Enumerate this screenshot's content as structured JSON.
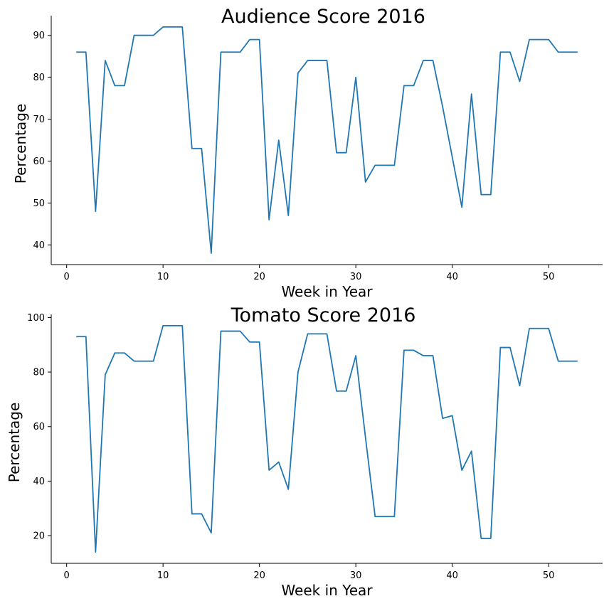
{
  "chart_data": [
    {
      "type": "line",
      "title": "Audience Score 2016",
      "xlabel": "Week in Year",
      "ylabel": "Percentage",
      "xlim": [
        -1.6,
        55.6
      ],
      "ylim": [
        35.3,
        94.7
      ],
      "xticks": [
        0,
        10,
        20,
        30,
        40,
        50
      ],
      "yticks": [
        40,
        50,
        60,
        70,
        80,
        90
      ],
      "grid": false,
      "color": "#1f77b4",
      "x": [
        1,
        2,
        3,
        4,
        5,
        6,
        7,
        8,
        9,
        10,
        11,
        12,
        13,
        14,
        15,
        16,
        17,
        18,
        19,
        20,
        21,
        22,
        23,
        24,
        25,
        26,
        27,
        28,
        29,
        30,
        31,
        32,
        33,
        34,
        35,
        36,
        37,
        38,
        39,
        40,
        41,
        42,
        43,
        44,
        45,
        46,
        47,
        48,
        49,
        50,
        51,
        52,
        53
      ],
      "series": [
        {
          "values": [
            86,
            86,
            48,
            84,
            78,
            78,
            90,
            90,
            90,
            92,
            92,
            92,
            63,
            63,
            38,
            86,
            86,
            86,
            89,
            89,
            46,
            65,
            47,
            81,
            84,
            84,
            84,
            62,
            62,
            80,
            55,
            59,
            59,
            59,
            78,
            78,
            84,
            84,
            73,
            61,
            49,
            76,
            52,
            52,
            86,
            86,
            79,
            89,
            89,
            89,
            86,
            86,
            86
          ]
        }
      ]
    },
    {
      "type": "line",
      "title": "Tomato Score 2016",
      "xlabel": "Week in Year",
      "ylabel": "Percentage",
      "xlim": [
        -1.6,
        55.6
      ],
      "ylim": [
        9.85,
        101.15
      ],
      "xticks": [
        0,
        10,
        20,
        30,
        40,
        50
      ],
      "yticks": [
        20,
        40,
        60,
        80,
        100
      ],
      "grid": false,
      "color": "#1f77b4",
      "x": [
        1,
        2,
        3,
        4,
        5,
        6,
        7,
        8,
        9,
        10,
        11,
        12,
        13,
        14,
        15,
        16,
        17,
        18,
        19,
        20,
        21,
        22,
        23,
        24,
        25,
        26,
        27,
        28,
        29,
        30,
        31,
        32,
        33,
        34,
        35,
        36,
        37,
        38,
        39,
        40,
        41,
        42,
        43,
        44,
        45,
        46,
        47,
        48,
        49,
        50,
        51,
        52,
        53
      ],
      "series": [
        {
          "values": [
            93,
            93,
            14,
            79,
            87,
            87,
            84,
            84,
            84,
            97,
            97,
            97,
            28,
            28,
            21,
            95,
            95,
            95,
            91,
            91,
            44,
            47,
            37,
            80,
            94,
            94,
            94,
            73,
            73,
            86,
            56,
            27,
            27,
            27,
            88,
            88,
            86,
            86,
            63,
            64,
            44,
            51,
            19,
            19,
            89,
            89,
            75,
            96,
            96,
            96,
            84,
            84,
            84
          ]
        }
      ]
    }
  ]
}
